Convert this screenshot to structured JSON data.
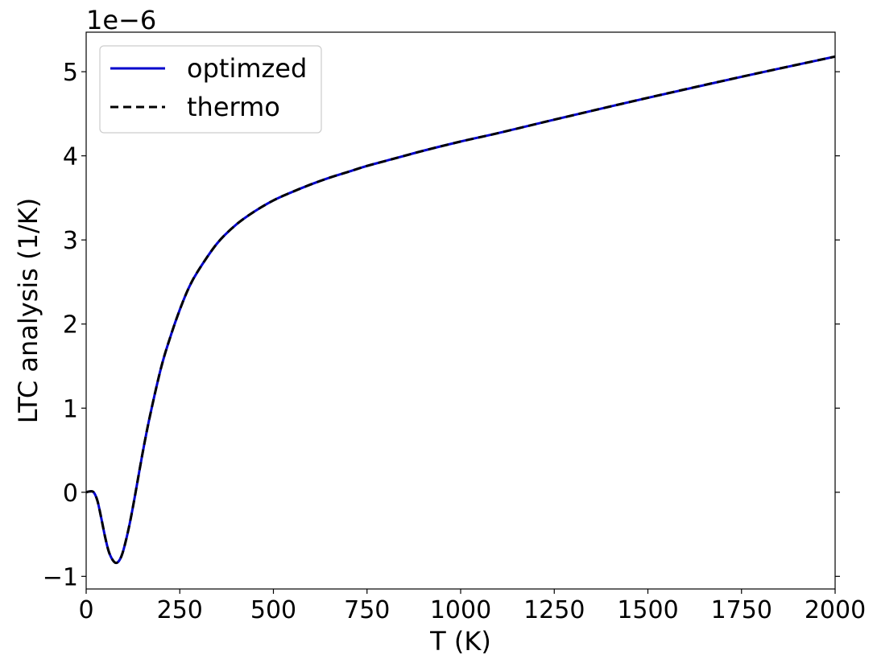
{
  "chart_data": {
    "type": "line",
    "xlabel": "T (K)",
    "ylabel": "LTC analysis (1/K)",
    "y_offset_label": "1e−6",
    "xlim": [
      0,
      2000
    ],
    "ylim": [
      -1.15,
      5.47
    ],
    "x_ticks": [
      0,
      250,
      500,
      750,
      1000,
      1250,
      1500,
      1750,
      2000
    ],
    "y_ticks": [
      -1,
      0,
      1,
      2,
      3,
      4,
      5
    ],
    "x_tick_labels": [
      "0",
      "250",
      "500",
      "750",
      "1000",
      "1250",
      "1500",
      "1750",
      "2000"
    ],
    "y_tick_labels": [
      "−1",
      "0",
      "1",
      "2",
      "3",
      "4",
      "5"
    ],
    "grid": false,
    "legend_position": "upper-left",
    "x": [
      0,
      10,
      20,
      30,
      40,
      50,
      60,
      70,
      80,
      90,
      100,
      115,
      130,
      150,
      170,
      200,
      225,
      250,
      275,
      300,
      350,
      400,
      450,
      500,
      550,
      600,
      650,
      700,
      750,
      800,
      900,
      1000,
      1100,
      1250,
      1500,
      1750,
      2000
    ],
    "series": [
      {
        "name": "optimzed",
        "color": "#0000cc",
        "style": "solid",
        "values": [
          0.0,
          0.01,
          0.0,
          -0.1,
          -0.3,
          -0.52,
          -0.7,
          -0.8,
          -0.84,
          -0.8,
          -0.68,
          -0.4,
          -0.05,
          0.45,
          0.9,
          1.48,
          1.85,
          2.17,
          2.44,
          2.64,
          2.96,
          3.18,
          3.34,
          3.47,
          3.57,
          3.66,
          3.74,
          3.81,
          3.88,
          3.94,
          4.06,
          4.17,
          4.27,
          4.43,
          4.69,
          4.94,
          5.18
        ]
      },
      {
        "name": "thermo",
        "color": "#000000",
        "style": "dashed",
        "values": [
          0.0,
          0.01,
          0.0,
          -0.1,
          -0.3,
          -0.52,
          -0.7,
          -0.8,
          -0.84,
          -0.8,
          -0.68,
          -0.4,
          -0.05,
          0.45,
          0.9,
          1.48,
          1.85,
          2.17,
          2.44,
          2.64,
          2.96,
          3.18,
          3.34,
          3.47,
          3.57,
          3.66,
          3.74,
          3.81,
          3.88,
          3.94,
          4.06,
          4.17,
          4.27,
          4.43,
          4.69,
          4.94,
          5.18
        ]
      }
    ]
  }
}
